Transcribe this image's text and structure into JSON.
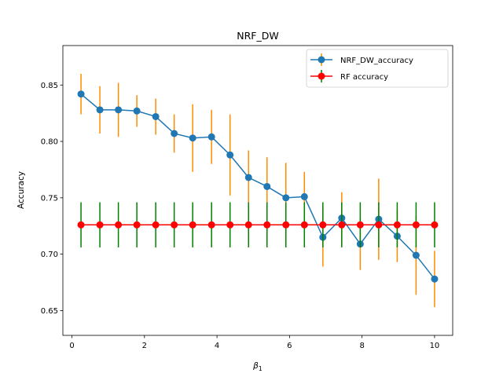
{
  "chart_data": {
    "type": "line",
    "title": "NRF_DW",
    "xlabel": "β",
    "xlabel_subscript": "1",
    "ylabel": "Accuracy",
    "xlim": [
      -0.25,
      10.5
    ],
    "ylim": [
      0.628,
      0.885
    ],
    "xticks": [
      0,
      2,
      4,
      6,
      8,
      10
    ],
    "xtick_labels": [
      "0",
      "2",
      "4",
      "6",
      "8",
      "10"
    ],
    "yticks": [
      0.65,
      0.7,
      0.75,
      0.8,
      0.85
    ],
    "ytick_labels": [
      "0.65",
      "0.70",
      "0.75",
      "0.80",
      "0.85"
    ],
    "grid": false,
    "legend_position": "top-right",
    "x": [
      0.25,
      0.77,
      1.28,
      1.79,
      2.31,
      2.82,
      3.33,
      3.85,
      4.36,
      4.87,
      5.38,
      5.9,
      6.41,
      6.92,
      7.44,
      7.95,
      8.46,
      8.97,
      9.49,
      10.0
    ],
    "series": [
      {
        "name": "NRF_DW_accuracy",
        "color": "#1f77b4",
        "error_color": "#ff8c00",
        "values": [
          0.842,
          0.828,
          0.828,
          0.827,
          0.822,
          0.807,
          0.803,
          0.804,
          0.788,
          0.768,
          0.76,
          0.75,
          0.751,
          0.715,
          0.732,
          0.709,
          0.731,
          0.716,
          0.699,
          0.678
        ],
        "errors": [
          0.018,
          0.021,
          0.024,
          0.014,
          0.016,
          0.017,
          0.03,
          0.024,
          0.036,
          0.024,
          0.026,
          0.031,
          0.022,
          0.026,
          0.023,
          0.023,
          0.036,
          0.023,
          0.035,
          0.025
        ]
      },
      {
        "name": "RF accuracy",
        "color": "#ff0000",
        "error_color": "#008000",
        "values": [
          0.726,
          0.726,
          0.726,
          0.726,
          0.726,
          0.726,
          0.726,
          0.726,
          0.726,
          0.726,
          0.726,
          0.726,
          0.726,
          0.726,
          0.726,
          0.726,
          0.726,
          0.726,
          0.726,
          0.726
        ],
        "errors": [
          0.02,
          0.02,
          0.02,
          0.02,
          0.02,
          0.02,
          0.02,
          0.02,
          0.02,
          0.02,
          0.02,
          0.02,
          0.02,
          0.02,
          0.02,
          0.02,
          0.02,
          0.02,
          0.02,
          0.02
        ]
      }
    ]
  }
}
